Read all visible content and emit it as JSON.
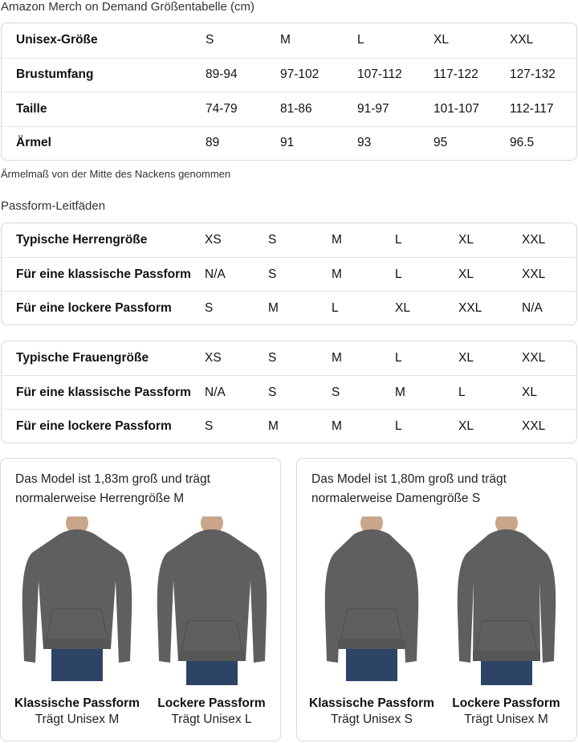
{
  "size_chart": {
    "title": "Amazon Merch on Demand Größentabelle (cm)",
    "rows": [
      {
        "label": "Unisex-Größe",
        "values": [
          "S",
          "M",
          "L",
          "XL",
          "XXL"
        ]
      },
      {
        "label": "Brustumfang",
        "values": [
          "89-94",
          "97-102",
          "107-112",
          "117-122",
          "127-132"
        ]
      },
      {
        "label": "Taille",
        "values": [
          "74-79",
          "81-86",
          "91-97",
          "101-107",
          "112-117"
        ]
      },
      {
        "label": "Ärmel",
        "values": [
          "89",
          "91",
          "93",
          "95",
          "96.5"
        ]
      }
    ],
    "note": "Ärmelmaß von der Mitte des Nackens genommen"
  },
  "fit_guides": {
    "title": "Passform-Leitfäden",
    "men": [
      {
        "label": "Typische Herrengröße",
        "values": [
          "XS",
          "S",
          "M",
          "L",
          "XL",
          "XXL"
        ]
      },
      {
        "label": "Für eine klassische Passform",
        "values": [
          "N/A",
          "S",
          "M",
          "L",
          "XL",
          "XXL"
        ]
      },
      {
        "label": "Für eine lockere Passform",
        "values": [
          "S",
          "M",
          "L",
          "XL",
          "XXL",
          "N/A"
        ]
      }
    ],
    "women": [
      {
        "label": "Typische Frauengröße",
        "values": [
          "XS",
          "S",
          "M",
          "L",
          "XL",
          "XXL"
        ]
      },
      {
        "label": "Für eine klassische Passform",
        "values": [
          "N/A",
          "S",
          "S",
          "M",
          "L",
          "XL"
        ]
      },
      {
        "label": "Für eine lockere Passform",
        "values": [
          "S",
          "M",
          "M",
          "L",
          "XL",
          "XXL"
        ]
      }
    ]
  },
  "models": [
    {
      "caption_line1": "Das Model ist 1,83m groß und trägt",
      "caption_line2": "normalerweise Herrengröße M",
      "figures": [
        {
          "title": "Klassische Passform",
          "sub": "Trägt Unisex M"
        },
        {
          "title": "Lockere Passform",
          "sub": "Trägt Unisex L"
        }
      ]
    },
    {
      "caption_line1": "Das Model ist 1,80m groß und trägt",
      "caption_line2": "normalerweise Damengröße S",
      "figures": [
        {
          "title": "Klassische Passform",
          "sub": "Trägt Unisex S"
        },
        {
          "title": "Lockere Passform",
          "sub": "Trägt Unisex M"
        }
      ]
    }
  ],
  "colors": {
    "hoodie": "#5f5f5f",
    "jeans": "#2e4466",
    "border": "#d5d9d9"
  }
}
